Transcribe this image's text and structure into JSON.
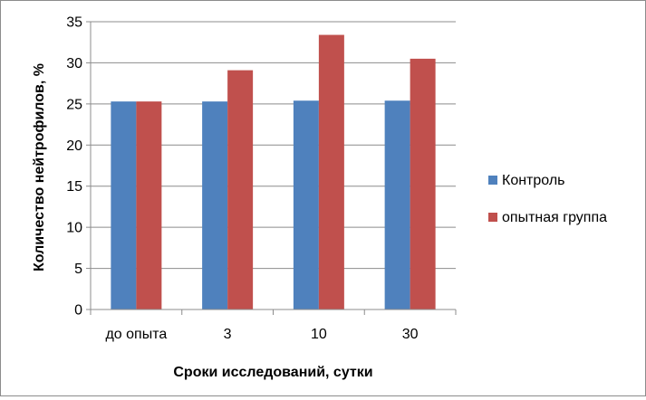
{
  "chart_data": {
    "type": "bar",
    "title": "",
    "xlabel": "Сроки исследований, сутки",
    "ylabel": "Количество нейтрофилов, %",
    "categories": [
      "до опыта",
      "3",
      "10",
      "30"
    ],
    "series": [
      {
        "name": "Контроль",
        "color": "#4f81bd",
        "values": [
          25.3,
          25.3,
          25.4,
          25.4
        ]
      },
      {
        "name": "опытная группа",
        "color": "#c0504d",
        "values": [
          25.3,
          29.1,
          33.4,
          30.5
        ]
      }
    ],
    "ylim": [
      0,
      35
    ],
    "yticks": [
      0,
      5,
      10,
      15,
      20,
      25,
      30,
      35
    ],
    "grid": true,
    "legend_position": "right"
  }
}
